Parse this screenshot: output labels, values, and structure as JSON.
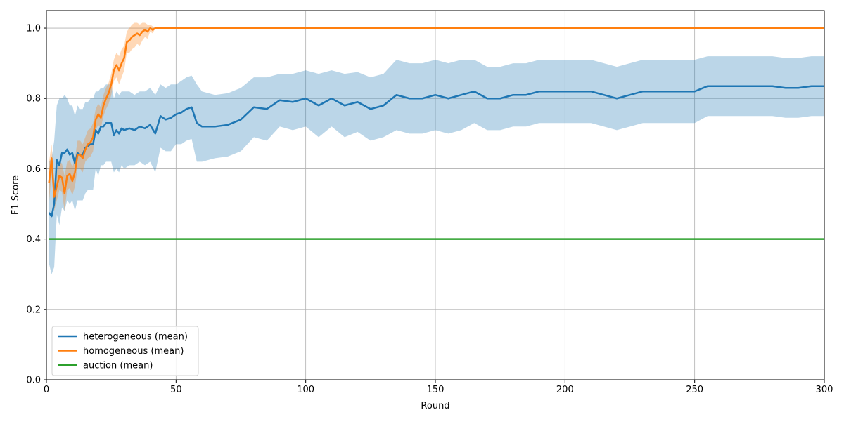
{
  "chart_data": {
    "type": "line",
    "xlabel": "Round",
    "ylabel": "F1 Score",
    "xlim": [
      0,
      300
    ],
    "ylim": [
      0.0,
      1.05
    ],
    "xticks": [
      "0",
      "50",
      "100",
      "150",
      "200",
      "250",
      "300"
    ],
    "yticks": [
      "0.0",
      "0.2",
      "0.4",
      "0.6",
      "0.8",
      "1.0"
    ],
    "grid": true,
    "legend_position": "lower-left",
    "series": [
      {
        "name": "heterogeneous (mean)",
        "color": "#1f77b4",
        "band_color": "#1f77b4",
        "x": [
          1,
          2,
          3,
          4,
          5,
          6,
          7,
          8,
          9,
          10,
          11,
          12,
          13,
          14,
          15,
          16,
          17,
          18,
          19,
          20,
          21,
          22,
          23,
          24,
          25,
          26,
          27,
          28,
          29,
          30,
          32,
          34,
          36,
          38,
          40,
          42,
          44,
          46,
          48,
          50,
          52,
          54,
          56,
          58,
          60,
          65,
          70,
          75,
          80,
          85,
          90,
          95,
          100,
          105,
          110,
          115,
          120,
          125,
          130,
          135,
          140,
          145,
          150,
          155,
          160,
          165,
          170,
          175,
          180,
          185,
          190,
          200,
          210,
          215,
          220,
          230,
          240,
          250,
          255,
          260,
          270,
          280,
          285,
          290,
          295,
          300
        ],
        "mean": [
          0.475,
          0.465,
          0.5,
          0.625,
          0.61,
          0.645,
          0.645,
          0.655,
          0.64,
          0.645,
          0.615,
          0.645,
          0.64,
          0.64,
          0.66,
          0.665,
          0.67,
          0.67,
          0.71,
          0.7,
          0.72,
          0.72,
          0.73,
          0.73,
          0.73,
          0.695,
          0.71,
          0.7,
          0.715,
          0.71,
          0.715,
          0.71,
          0.72,
          0.715,
          0.725,
          0.7,
          0.75,
          0.74,
          0.745,
          0.755,
          0.76,
          0.77,
          0.775,
          0.73,
          0.72,
          0.72,
          0.725,
          0.74,
          0.775,
          0.77,
          0.795,
          0.79,
          0.8,
          0.78,
          0.8,
          0.78,
          0.79,
          0.77,
          0.78,
          0.81,
          0.8,
          0.8,
          0.81,
          0.8,
          0.81,
          0.82,
          0.8,
          0.8,
          0.81,
          0.81,
          0.82,
          0.82,
          0.82,
          0.81,
          0.8,
          0.82,
          0.82,
          0.82,
          0.835,
          0.835,
          0.835,
          0.835,
          0.83,
          0.83,
          0.835,
          0.835
        ],
        "upper": [
          0.62,
          0.63,
          0.68,
          0.78,
          0.8,
          0.8,
          0.81,
          0.8,
          0.78,
          0.78,
          0.75,
          0.78,
          0.77,
          0.77,
          0.79,
          0.79,
          0.8,
          0.8,
          0.82,
          0.82,
          0.83,
          0.83,
          0.84,
          0.84,
          0.84,
          0.8,
          0.82,
          0.81,
          0.82,
          0.82,
          0.82,
          0.81,
          0.82,
          0.82,
          0.83,
          0.81,
          0.84,
          0.83,
          0.84,
          0.84,
          0.85,
          0.86,
          0.865,
          0.84,
          0.82,
          0.81,
          0.815,
          0.83,
          0.86,
          0.86,
          0.87,
          0.87,
          0.88,
          0.87,
          0.88,
          0.87,
          0.875,
          0.86,
          0.87,
          0.91,
          0.9,
          0.9,
          0.91,
          0.9,
          0.91,
          0.91,
          0.89,
          0.89,
          0.9,
          0.9,
          0.91,
          0.91,
          0.91,
          0.9,
          0.89,
          0.91,
          0.91,
          0.91,
          0.92,
          0.92,
          0.92,
          0.92,
          0.915,
          0.915,
          0.92,
          0.92
        ],
        "lower": [
          0.33,
          0.3,
          0.32,
          0.47,
          0.44,
          0.49,
          0.48,
          0.51,
          0.5,
          0.51,
          0.48,
          0.51,
          0.51,
          0.51,
          0.53,
          0.54,
          0.54,
          0.54,
          0.6,
          0.58,
          0.61,
          0.61,
          0.62,
          0.62,
          0.62,
          0.59,
          0.6,
          0.59,
          0.61,
          0.6,
          0.61,
          0.61,
          0.62,
          0.61,
          0.62,
          0.59,
          0.66,
          0.65,
          0.65,
          0.67,
          0.67,
          0.68,
          0.685,
          0.62,
          0.62,
          0.63,
          0.635,
          0.65,
          0.69,
          0.68,
          0.72,
          0.71,
          0.72,
          0.69,
          0.72,
          0.69,
          0.705,
          0.68,
          0.69,
          0.71,
          0.7,
          0.7,
          0.71,
          0.7,
          0.71,
          0.73,
          0.71,
          0.71,
          0.72,
          0.72,
          0.73,
          0.73,
          0.73,
          0.72,
          0.71,
          0.73,
          0.73,
          0.73,
          0.75,
          0.75,
          0.75,
          0.75,
          0.745,
          0.745,
          0.75,
          0.75
        ]
      },
      {
        "name": "homogeneous (mean)",
        "color": "#ff7f0e",
        "band_color": "#ff7f0e",
        "x": [
          1,
          2,
          3,
          4,
          5,
          6,
          7,
          8,
          9,
          10,
          11,
          12,
          13,
          14,
          15,
          16,
          17,
          18,
          19,
          20,
          21,
          22,
          23,
          24,
          25,
          26,
          27,
          28,
          29,
          30,
          31,
          32,
          33,
          34,
          35,
          36,
          37,
          38,
          39,
          40,
          41,
          42,
          50,
          100,
          150,
          200,
          250,
          300
        ],
        "mean": [
          0.56,
          0.63,
          0.52,
          0.55,
          0.58,
          0.575,
          0.53,
          0.58,
          0.585,
          0.565,
          0.59,
          0.64,
          0.64,
          0.63,
          0.655,
          0.67,
          0.675,
          0.69,
          0.74,
          0.755,
          0.745,
          0.78,
          0.8,
          0.815,
          0.84,
          0.88,
          0.895,
          0.88,
          0.9,
          0.915,
          0.96,
          0.965,
          0.975,
          0.98,
          0.985,
          0.98,
          0.99,
          0.995,
          0.99,
          1.0,
          0.995,
          1.0,
          1.0,
          1.0,
          1.0,
          1.0,
          1.0,
          1.0
        ],
        "upper": [
          0.62,
          0.67,
          0.56,
          0.59,
          0.62,
          0.615,
          0.58,
          0.62,
          0.625,
          0.605,
          0.63,
          0.68,
          0.68,
          0.67,
          0.69,
          0.71,
          0.715,
          0.73,
          0.77,
          0.785,
          0.775,
          0.81,
          0.83,
          0.845,
          0.87,
          0.91,
          0.93,
          0.92,
          0.94,
          0.95,
          0.99,
          1.0,
          1.01,
          1.015,
          1.015,
          1.01,
          1.015,
          1.015,
          1.01,
          1.01,
          1.005,
          1.0,
          1.0,
          1.0,
          1.0,
          1.0,
          1.0,
          1.0
        ],
        "lower": [
          0.5,
          0.59,
          0.48,
          0.51,
          0.54,
          0.535,
          0.48,
          0.54,
          0.545,
          0.525,
          0.55,
          0.6,
          0.6,
          0.59,
          0.62,
          0.63,
          0.635,
          0.65,
          0.71,
          0.725,
          0.715,
          0.75,
          0.77,
          0.785,
          0.81,
          0.85,
          0.86,
          0.84,
          0.86,
          0.88,
          0.93,
          0.93,
          0.94,
          0.945,
          0.955,
          0.95,
          0.965,
          0.975,
          0.97,
          0.99,
          0.985,
          1.0,
          1.0,
          1.0,
          1.0,
          1.0,
          1.0,
          1.0
        ]
      },
      {
        "name": "auction (mean)",
        "color": "#2ca02c",
        "x": [
          1,
          300
        ],
        "mean": [
          0.4,
          0.4
        ]
      }
    ]
  }
}
